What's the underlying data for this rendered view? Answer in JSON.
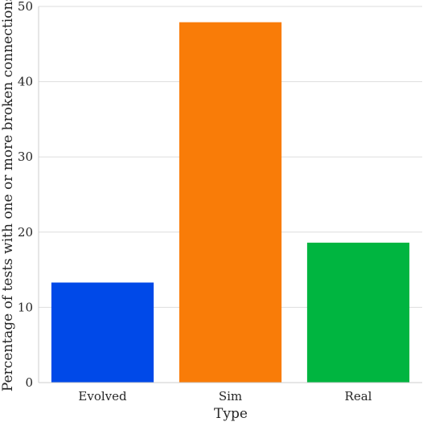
{
  "chart_data": {
    "type": "bar",
    "title": "",
    "xlabel": "Type",
    "ylabel": "Percentage of tests with one or more broken connections",
    "categories": [
      "Evolved",
      "Sim",
      "Real"
    ],
    "values": [
      13.3,
      47.9,
      18.6
    ],
    "colors": [
      "#0049e8",
      "#f97c08",
      "#00b540"
    ],
    "ylim": [
      0,
      50
    ],
    "yticks": [
      0,
      10,
      20,
      30,
      40,
      50
    ],
    "grid": "horizontal",
    "legend": "none"
  }
}
